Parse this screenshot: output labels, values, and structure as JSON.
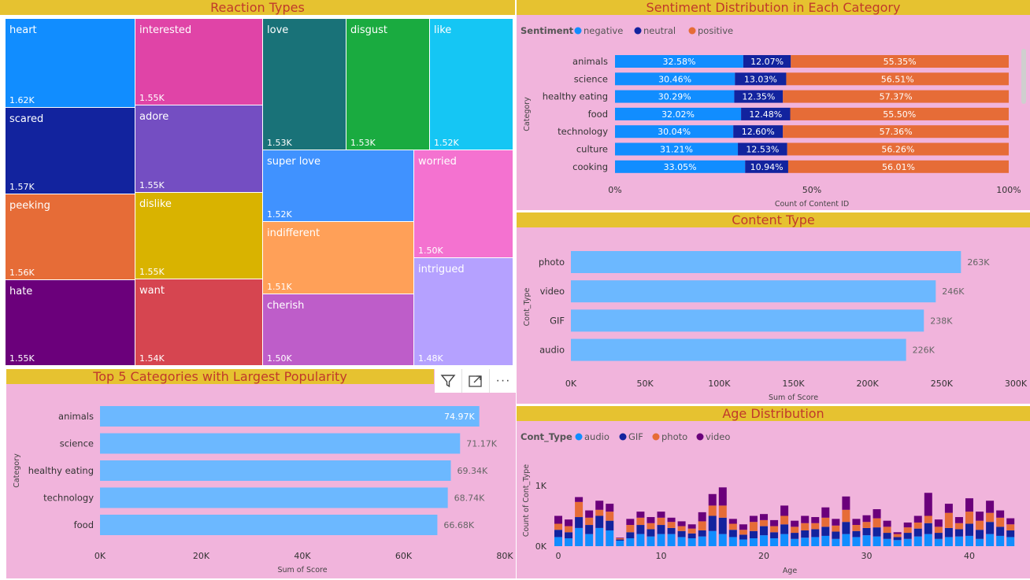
{
  "panels": {
    "reaction_title": "Reaction Types",
    "sentiment_title": "Sentiment Distribution in Each Category",
    "content_title": "Content Type",
    "top5_title": "Top 5 Categories with Largest Popularity",
    "age_title": "Age Distribution"
  },
  "toolbar": {
    "icons": [
      "filter-icon",
      "focus-mode-icon",
      "more-options-icon"
    ],
    "more_label": "···"
  },
  "chart_data": [
    {
      "id": "reaction",
      "type": "treemap",
      "title": "Reaction Types",
      "items": [
        {
          "label": "heart",
          "value_label": "1.62K",
          "color": "#118dff"
        },
        {
          "label": "scared",
          "value_label": "1.57K",
          "color": "#12239e"
        },
        {
          "label": "peeking",
          "value_label": "1.56K",
          "color": "#e66c37"
        },
        {
          "label": "hate",
          "value_label": "1.55K",
          "color": "#6b007b"
        },
        {
          "label": "interested",
          "value_label": "1.55K",
          "color": "#e044a7"
        },
        {
          "label": "adore",
          "value_label": "1.55K",
          "color": "#744ec2"
        },
        {
          "label": "dislike",
          "value_label": "1.55K",
          "color": "#d9b300"
        },
        {
          "label": "want",
          "value_label": "1.54K",
          "color": "#d64550"
        },
        {
          "label": "love",
          "value_label": "1.53K",
          "color": "#197278"
        },
        {
          "label": "disgust",
          "value_label": "1.53K",
          "color": "#1aab40"
        },
        {
          "label": "like",
          "value_label": "1.52K",
          "color": "#15c6f4"
        },
        {
          "label": "super love",
          "value_label": "1.52K",
          "color": "#4092ff"
        },
        {
          "label": "indifferent",
          "value_label": "1.51K",
          "color": "#ffa058"
        },
        {
          "label": "cherish",
          "value_label": "1.50K",
          "color": "#be5dc9"
        },
        {
          "label": "worried",
          "value_label": "1.50K",
          "color": "#f472d0"
        },
        {
          "label": "intrigued",
          "value_label": "1.48K",
          "color": "#b5a1ff"
        }
      ]
    },
    {
      "id": "sentiment",
      "type": "bar",
      "stacked": "100%",
      "title": "Sentiment Distribution in Each Category",
      "legend_title": "Sentiment",
      "ylabel": "Category",
      "xlabel": "Count of Content ID",
      "xticks": [
        "0%",
        "50%",
        "100%"
      ],
      "categories": [
        "animals",
        "science",
        "healthy eating",
        "food",
        "technology",
        "culture",
        "cooking"
      ],
      "series": [
        {
          "name": "negative",
          "color": "#118dff",
          "values": [
            32.58,
            30.46,
            30.29,
            32.02,
            30.04,
            31.21,
            33.05
          ],
          "labels": [
            "32.58%",
            "30.46%",
            "30.29%",
            "32.02%",
            "30.04%",
            "31.21%",
            "33.05%"
          ]
        },
        {
          "name": "neutral",
          "color": "#12239e",
          "values": [
            12.07,
            13.03,
            12.35,
            12.48,
            12.6,
            12.53,
            10.94
          ],
          "labels": [
            "12.07%",
            "13.03%",
            "12.35%",
            "12.48%",
            "12.60%",
            "12.53%",
            "10.94%"
          ]
        },
        {
          "name": "positive",
          "color": "#e66c37",
          "values": [
            55.35,
            56.51,
            57.37,
            55.5,
            57.36,
            56.26,
            56.01
          ],
          "labels": [
            "55.35%",
            "56.51%",
            "57.37%",
            "55.50%",
            "57.36%",
            "56.26%",
            "56.01%"
          ]
        }
      ]
    },
    {
      "id": "content",
      "type": "bar",
      "title": "Content Type",
      "ylabel": "Cont_Type",
      "xlabel": "Sum of Score",
      "xlim": [
        0,
        300000
      ],
      "xticks": [
        0,
        50000,
        100000,
        150000,
        200000,
        250000,
        300000
      ],
      "xtick_labels": [
        "0K",
        "50K",
        "100K",
        "150K",
        "200K",
        "250K",
        "300K"
      ],
      "categories": [
        "photo",
        "video",
        "GIF",
        "audio"
      ],
      "values": [
        263000,
        246000,
        238000,
        226000
      ],
      "value_labels": [
        "263K",
        "246K",
        "238K",
        "226K"
      ],
      "color": "#6cb8ff"
    },
    {
      "id": "top5",
      "type": "bar",
      "title": "Top 5 Categories with Largest Popularity",
      "ylabel": "Category",
      "xlabel": "Sum of Score",
      "xlim": [
        0,
        80000
      ],
      "xticks": [
        0,
        20000,
        40000,
        60000,
        80000
      ],
      "xtick_labels": [
        "0K",
        "20K",
        "40K",
        "60K",
        "80K"
      ],
      "categories": [
        "animals",
        "science",
        "healthy eating",
        "technology",
        "food"
      ],
      "values": [
        74970,
        71170,
        69340,
        68740,
        66680
      ],
      "value_labels": [
        "74.97K",
        "71.17K",
        "69.34K",
        "68.74K",
        "66.68K"
      ],
      "color": "#6cb8ff"
    },
    {
      "id": "age",
      "type": "bar",
      "stacked": true,
      "title": "Age Distribution",
      "legend_title": "Cont_Type",
      "xlabel": "Age",
      "ylabel": "Count of Cont_Type",
      "ylim": [
        0,
        1300
      ],
      "yticks": [
        0,
        1000
      ],
      "ytick_labels": [
        "0K",
        "1K"
      ],
      "xticks": [
        0,
        10,
        20,
        30,
        40
      ],
      "x": [
        0,
        1,
        2,
        3,
        4,
        5,
        6,
        7,
        8,
        9,
        10,
        11,
        12,
        13,
        14,
        15,
        16,
        17,
        18,
        19,
        20,
        21,
        22,
        23,
        24,
        25,
        26,
        27,
        28,
        29,
        30,
        31,
        32,
        33,
        34,
        35,
        36,
        37,
        38,
        39,
        40,
        41,
        42,
        43,
        44
      ],
      "series": [
        {
          "name": "audio",
          "color": "#118dff",
          "values": [
            150,
            130,
            300,
            200,
            300,
            260,
            90,
            130,
            200,
            160,
            200,
            200,
            150,
            130,
            160,
            250,
            200,
            150,
            110,
            130,
            180,
            130,
            200,
            120,
            140,
            150,
            170,
            120,
            200,
            150,
            180,
            160,
            120,
            100,
            120,
            160,
            200,
            120,
            150,
            160,
            170,
            120,
            200,
            170,
            150
          ]
        },
        {
          "name": "GIF",
          "color": "#12239e",
          "values": [
            120,
            100,
            180,
            150,
            200,
            160,
            20,
            100,
            150,
            120,
            150,
            100,
            100,
            80,
            100,
            250,
            270,
            120,
            80,
            120,
            150,
            100,
            160,
            100,
            120,
            130,
            150,
            120,
            200,
            100,
            120,
            150,
            100,
            50,
            100,
            130,
            180,
            100,
            150,
            120,
            200,
            150,
            200,
            150,
            110
          ]
        },
        {
          "name": "photo",
          "color": "#e66c37",
          "values": [
            100,
            100,
            250,
            120,
            100,
            150,
            20,
            120,
            120,
            100,
            120,
            100,
            80,
            80,
            150,
            170,
            200,
            100,
            80,
            150,
            100,
            100,
            140,
            100,
            120,
            100,
            150,
            100,
            200,
            100,
            100,
            150,
            100,
            50,
            90,
            100,
            120,
            100,
            250,
            100,
            200,
            150,
            150,
            150,
            100
          ]
        },
        {
          "name": "video",
          "color": "#6b007b",
          "values": [
            130,
            110,
            80,
            120,
            150,
            130,
            10,
            100,
            100,
            100,
            100,
            70,
            80,
            70,
            150,
            190,
            300,
            80,
            90,
            100,
            100,
            100,
            170,
            100,
            120,
            100,
            170,
            110,
            220,
            100,
            110,
            150,
            100,
            30,
            80,
            110,
            380,
            120,
            150,
            100,
            220,
            150,
            200,
            120,
            100
          ]
        }
      ]
    }
  ]
}
